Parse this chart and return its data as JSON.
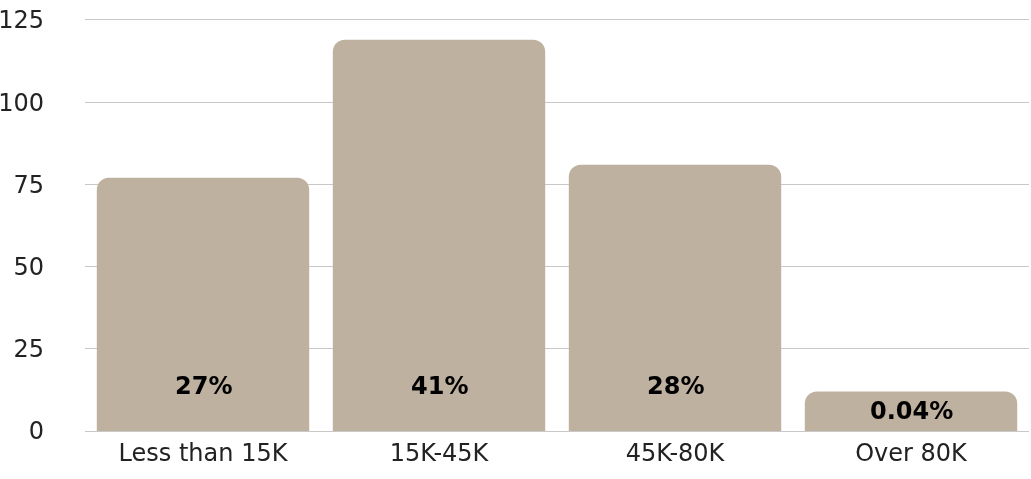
{
  "chart_data": {
    "type": "bar",
    "categories": [
      "Less than 15K",
      "15K-45K",
      "45K-80K",
      "Over 80K"
    ],
    "values": [
      77,
      119,
      81,
      12
    ],
    "annotations": [
      "27%",
      "41%",
      "28%",
      "0.04%"
    ],
    "color": "#bfb1a0",
    "ylim": [
      0,
      125
    ],
    "yticks": [
      0,
      25,
      50,
      75,
      100,
      125
    ],
    "grid": "y"
  }
}
